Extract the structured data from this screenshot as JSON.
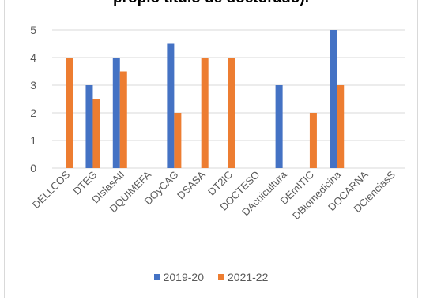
{
  "chart_data": {
    "type": "bar",
    "title": "propio título de doctorado).",
    "categories": [
      "DELLCOS",
      "DTEG",
      "DIslasAtl",
      "DQUIMEFA",
      "DOyCAG",
      "DSASA",
      "DT2IC",
      "DOCTESO",
      "DAcuicultura",
      "DEmITIC",
      "DBiomedicina",
      "DOCARNA",
      "DCienciasS"
    ],
    "series": [
      {
        "name": "2019-20",
        "color": "#4472c4",
        "values": [
          null,
          3,
          4,
          null,
          4.5,
          null,
          null,
          null,
          3,
          null,
          5,
          null,
          null
        ]
      },
      {
        "name": "2021-22",
        "color": "#ed7d31",
        "values": [
          4,
          2.5,
          3.5,
          null,
          2,
          4,
          4,
          null,
          null,
          2,
          3,
          null,
          null
        ]
      }
    ],
    "ylim": [
      0,
      5
    ],
    "yticks": [
      "0",
      "1",
      "2",
      "3",
      "4",
      "5"
    ],
    "grid": true,
    "legend": "bottom"
  }
}
